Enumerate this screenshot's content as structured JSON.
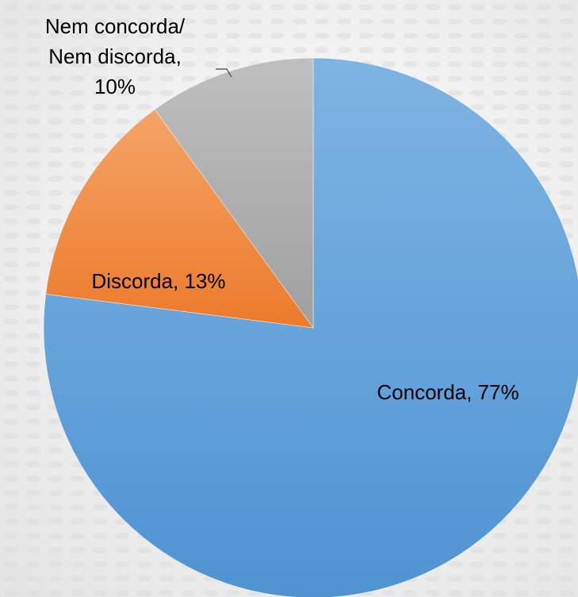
{
  "chart_data": {
    "type": "pie",
    "title": "",
    "start_angle_deg": 0,
    "direction": "clockwise",
    "colors": {
      "Concorda": "#5b9bd5",
      "Discorda": "#ed7d31",
      "Nem concorda/ Nem discorda": "#a5a5a5"
    },
    "slices": [
      {
        "category": "Concorda",
        "value": 77,
        "label_lines": [
          "Concorda, 77%"
        ]
      },
      {
        "category": "Discorda",
        "value": 13,
        "label_lines": [
          "Discorda, 13%"
        ]
      },
      {
        "category": "Nem concorda/ Nem discorda",
        "value": 10,
        "label_lines": [
          "Nem concorda/",
          "Nem discorda,",
          "10%"
        ]
      }
    ]
  }
}
